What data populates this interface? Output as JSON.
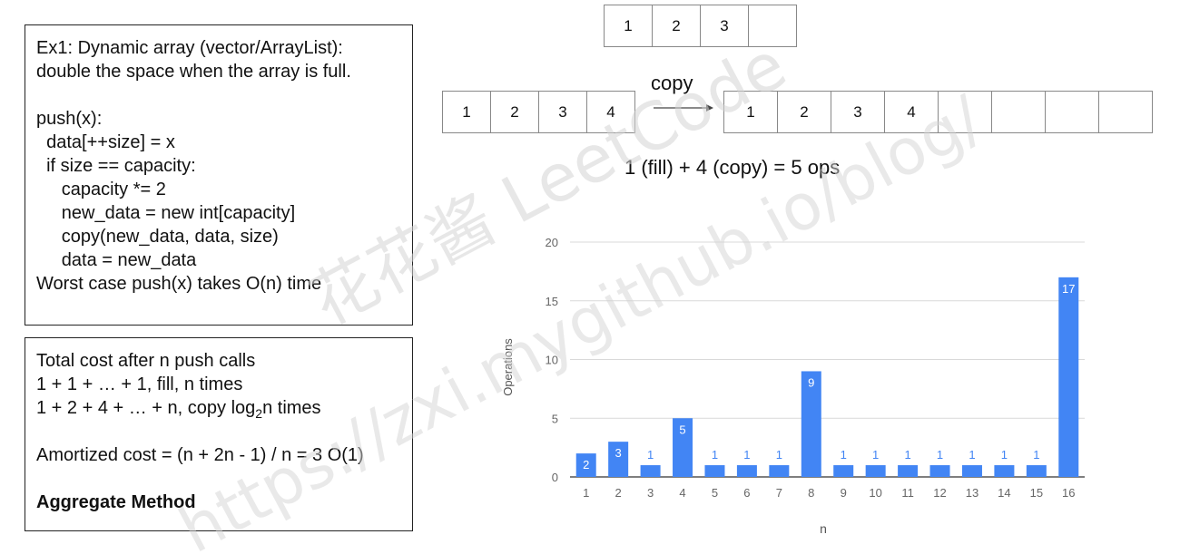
{
  "code_box": {
    "lines": [
      "Ex1: Dynamic array (vector/ArrayList):",
      "double the space when the array is full.",
      "",
      "push(x):",
      "  data[++size] = x",
      "  if size == capacity:",
      "     capacity *= 2",
      "     new_data = new int[capacity]",
      "     copy(new_data, data, size)",
      "     data = new_data",
      "Worst case push(x) takes O(n) time"
    ]
  },
  "cost_box": {
    "line1": "Total cost after n push calls",
    "line2": "1 + 1 + … + 1, fill, n times",
    "line3_pre": "1 + 2 + 4 + … + n, copy log",
    "line3_sub": "2",
    "line3_post": "n times",
    "line4": "Amortized cost = (n + 2n - 1) / n = 3 O(1)",
    "method": "Aggregate Method"
  },
  "arrays": {
    "top": [
      "1",
      "2",
      "3",
      ""
    ],
    "left": [
      "1",
      "2",
      "3",
      "4"
    ],
    "right": [
      "1",
      "2",
      "3",
      "4",
      "",
      "",
      "",
      ""
    ]
  },
  "copy_label": "copy",
  "ops_text": "1 (fill) + 4 (copy) = 5 ops",
  "watermark": {
    "text1": "花花酱 LeetCode",
    "text2": "https://zxi.mygithub.io/blog/",
    "color": "#c8c8c8"
  },
  "chart_data": {
    "type": "bar",
    "categories": [
      "1",
      "2",
      "3",
      "4",
      "5",
      "6",
      "7",
      "8",
      "9",
      "10",
      "11",
      "12",
      "13",
      "14",
      "15",
      "16"
    ],
    "values": [
      2,
      3,
      1,
      5,
      1,
      1,
      1,
      9,
      1,
      1,
      1,
      1,
      1,
      1,
      1,
      17
    ],
    "data_labels": [
      "2",
      "3",
      "1",
      "5",
      "1",
      "1",
      "1",
      "9",
      "1",
      "1",
      "1",
      "1",
      "1",
      "1",
      "1",
      "17"
    ],
    "title": "",
    "xlabel": "n",
    "ylabel": "Operations",
    "ylim": [
      0,
      20
    ],
    "yticks": [
      0,
      5,
      10,
      15,
      20
    ],
    "grid": true,
    "bar_color": "#4285f4"
  }
}
